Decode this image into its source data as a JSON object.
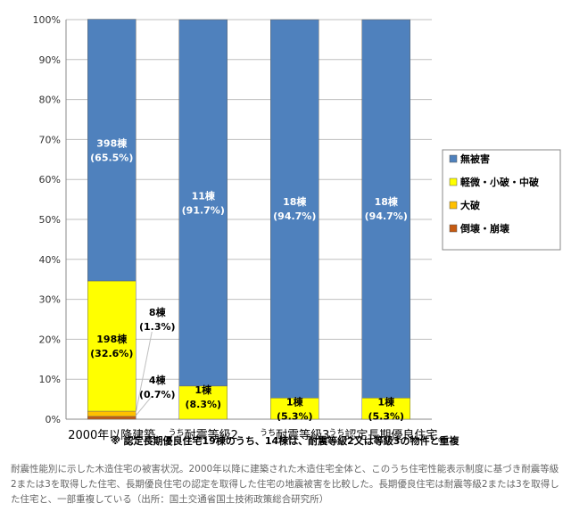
{
  "chart_data": {
    "type": "bar",
    "stacked": true,
    "ylim": [
      0,
      100
    ],
    "yticks": [
      "0%",
      "10%",
      "20%",
      "30%",
      "40%",
      "50%",
      "60%",
      "70%",
      "80%",
      "90%",
      "100%"
    ],
    "grid": true,
    "legend_position": "right",
    "categories": [
      {
        "prefix": "",
        "label": "2000年以降建築",
        "suffix": ""
      },
      {
        "prefix": "うち",
        "label": "耐震等級2",
        "suffix": ""
      },
      {
        "prefix": "うち",
        "label": "耐震等級3",
        "suffix": ""
      },
      {
        "prefix": "うち",
        "label": "認定長期優良住宅",
        "suffix": "※"
      }
    ],
    "series": [
      {
        "name": "倒壊・崩壊",
        "color": "#c55a11",
        "values": [
          0.7,
          0,
          0,
          0
        ]
      },
      {
        "name": "大破",
        "color": "#ffc000",
        "values": [
          1.3,
          0,
          0,
          0
        ]
      },
      {
        "name": "軽微・小破・中破",
        "color": "#ffff00",
        "values": [
          32.6,
          8.3,
          5.3,
          5.3
        ]
      },
      {
        "name": "無被害",
        "color": "#4f81bd",
        "values": [
          65.5,
          91.7,
          94.7,
          94.7
        ]
      }
    ],
    "data_labels": [
      {
        "bar": 0,
        "series": "無被害",
        "count": "398棟",
        "pct": "(65.5%)"
      },
      {
        "bar": 0,
        "series": "軽微・小破・中破",
        "count": "198棟",
        "pct": "(32.6%)"
      },
      {
        "bar": 0,
        "series": "大破",
        "count": "8棟",
        "pct": "(1.3%)"
      },
      {
        "bar": 0,
        "series": "倒壊・崩壊",
        "count": "4棟",
        "pct": "(0.7%)"
      },
      {
        "bar": 1,
        "series": "無被害",
        "count": "11棟",
        "pct": "(91.7%)"
      },
      {
        "bar": 1,
        "series": "軽微・小破・中破",
        "count": "1棟",
        "pct": "(8.3%)"
      },
      {
        "bar": 2,
        "series": "無被害",
        "count": "18棟",
        "pct": "(94.7%)"
      },
      {
        "bar": 2,
        "series": "軽微・小破・中破",
        "count": "1棟",
        "pct": "(5.3%)"
      },
      {
        "bar": 3,
        "series": "無被害",
        "count": "18棟",
        "pct": "(94.7%)"
      },
      {
        "bar": 3,
        "series": "軽微・小破・中破",
        "count": "1棟",
        "pct": "(5.3%)"
      }
    ],
    "legend": [
      "無被害",
      "軽微・小破・中破",
      "大破",
      "倒壊・崩壊"
    ],
    "note": "※ 認定長期優良住宅19棟のうち、14棟は、耐震等級2又は等級3の物件と重複"
  },
  "caption": "耐震性能別に示した木造住宅の被害状況。2000年以降に建築された木造住宅全体と、このうち住宅性能表示制度に基づき耐震等級2または3を取得した住宅、長期優良住宅の認定を取得した住宅の地震被害を比較した。長期優良住宅は耐震等級2または3を取得した住宅と、一部重複している（出所：国土交通省国土技術政策総合研究所）"
}
